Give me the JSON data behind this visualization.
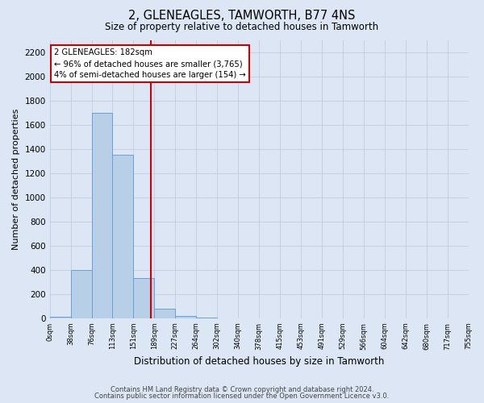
{
  "title": "2, GLENEAGLES, TAMWORTH, B77 4NS",
  "subtitle": "Size of property relative to detached houses in Tamworth",
  "xlabel": "Distribution of detached houses by size in Tamworth",
  "ylabel": "Number of detached properties",
  "bar_color": "#b8cfe8",
  "bar_edge_color": "#6a9fd8",
  "bins": [
    "0sqm",
    "38sqm",
    "76sqm",
    "113sqm",
    "151sqm",
    "189sqm",
    "227sqm",
    "264sqm",
    "302sqm",
    "340sqm",
    "378sqm",
    "415sqm",
    "453sqm",
    "491sqm",
    "529sqm",
    "566sqm",
    "604sqm",
    "642sqm",
    "680sqm",
    "717sqm",
    "755sqm"
  ],
  "values": [
    10,
    400,
    1700,
    1350,
    330,
    80,
    20,
    5,
    0,
    0,
    0,
    0,
    0,
    0,
    0,
    0,
    0,
    0,
    0,
    0
  ],
  "vline_color": "#cc0000",
  "annotation_line1": "2 GLENEAGLES: 182sqm",
  "annotation_line2": "← 96% of detached houses are smaller (3,765)",
  "annotation_line3": "4% of semi-detached houses are larger (154) →",
  "annotation_box_color": "#cc0000",
  "ylim": [
    0,
    2300
  ],
  "yticks": [
    0,
    200,
    400,
    600,
    800,
    1000,
    1200,
    1400,
    1600,
    1800,
    2000,
    2200
  ],
  "footer_line1": "Contains HM Land Registry data © Crown copyright and database right 2024.",
  "footer_line2": "Contains public sector information licensed under the Open Government Licence v3.0.",
  "background_color": "#dce6f5",
  "grid_color": "#c0cce0"
}
